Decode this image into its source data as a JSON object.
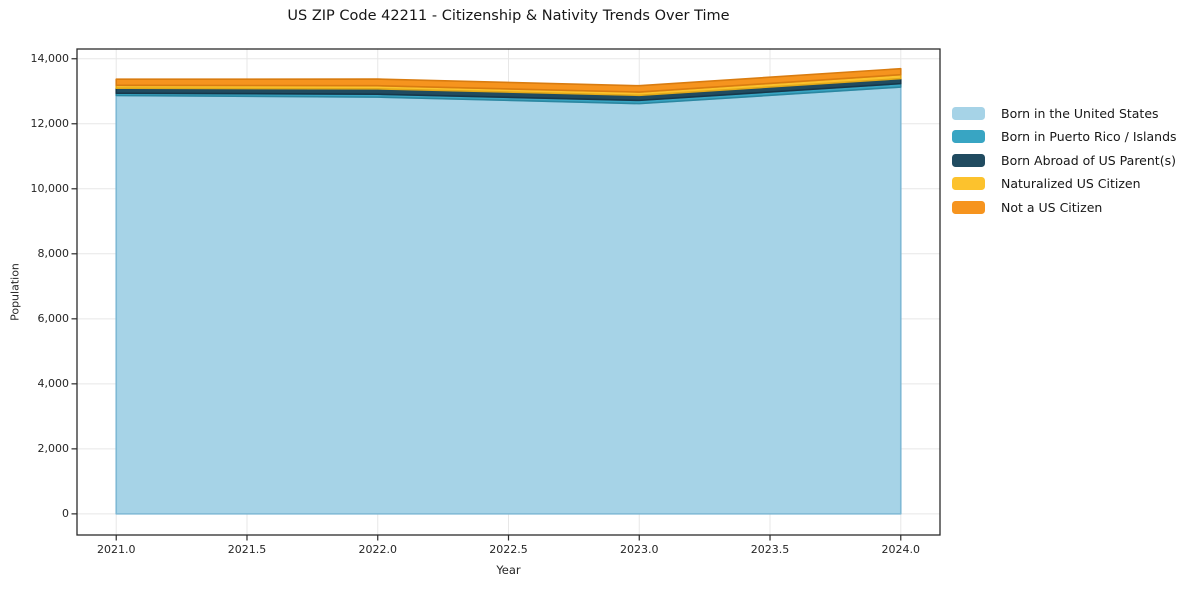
{
  "title": "US ZIP Code 42211 - Citizenship & Nativity Trends Over Time",
  "chart_data": {
    "type": "area",
    "stacked": true,
    "title": "US ZIP Code 42211 - Citizenship & Nativity Trends Over Time",
    "xlabel": "Year",
    "ylabel": "Population",
    "x": [
      2021,
      2022,
      2023,
      2024
    ],
    "series": [
      {
        "name": "Born in the United States",
        "color": "#a6d3e7",
        "edge_color": "#7fb9d5",
        "values": [
          12870,
          12820,
          12620,
          13130
        ]
      },
      {
        "name": "Born in Puerto Rico / Islands",
        "color": "#38a5c3",
        "edge_color": "#2b87a1",
        "values": [
          70,
          90,
          100,
          105
        ]
      },
      {
        "name": "Born Abroad of US Parent(s)",
        "color": "#204b60",
        "edge_color": "#16374a",
        "values": [
          155,
          165,
          155,
          155
        ]
      },
      {
        "name": "Naturalized US Citizen",
        "color": "#fcc22d",
        "edge_color": "#e2a818",
        "values": [
          90,
          95,
          100,
          120
        ]
      },
      {
        "name": "Not a US Citizen",
        "color": "#f6941e",
        "edge_color": "#d97c10",
        "values": [
          185,
          205,
          195,
          185
        ]
      }
    ],
    "totals": [
      13370,
      13375,
      13170,
      13695
    ],
    "xlim": [
      2020.85,
      2024.15
    ],
    "ylim": [
      -650,
      14300
    ],
    "xticks": {
      "values": [
        2021.0,
        2021.5,
        2022.0,
        2022.5,
        2023.0,
        2023.5,
        2024.0
      ],
      "labels": [
        "2021.0",
        "2021.5",
        "2022.0",
        "2022.5",
        "2023.0",
        "2023.5",
        "2024.0"
      ]
    },
    "yticks": {
      "values": [
        0,
        2000,
        4000,
        6000,
        8000,
        10000,
        12000,
        14000
      ],
      "labels": [
        "0",
        "2,000",
        "4,000",
        "6,000",
        "8,000",
        "10,000",
        "12,000",
        "14,000"
      ]
    },
    "grid": true,
    "grid_color": "#e7e7e7",
    "spine_color": "#2b2b2b",
    "legend_position": "outside-right"
  }
}
